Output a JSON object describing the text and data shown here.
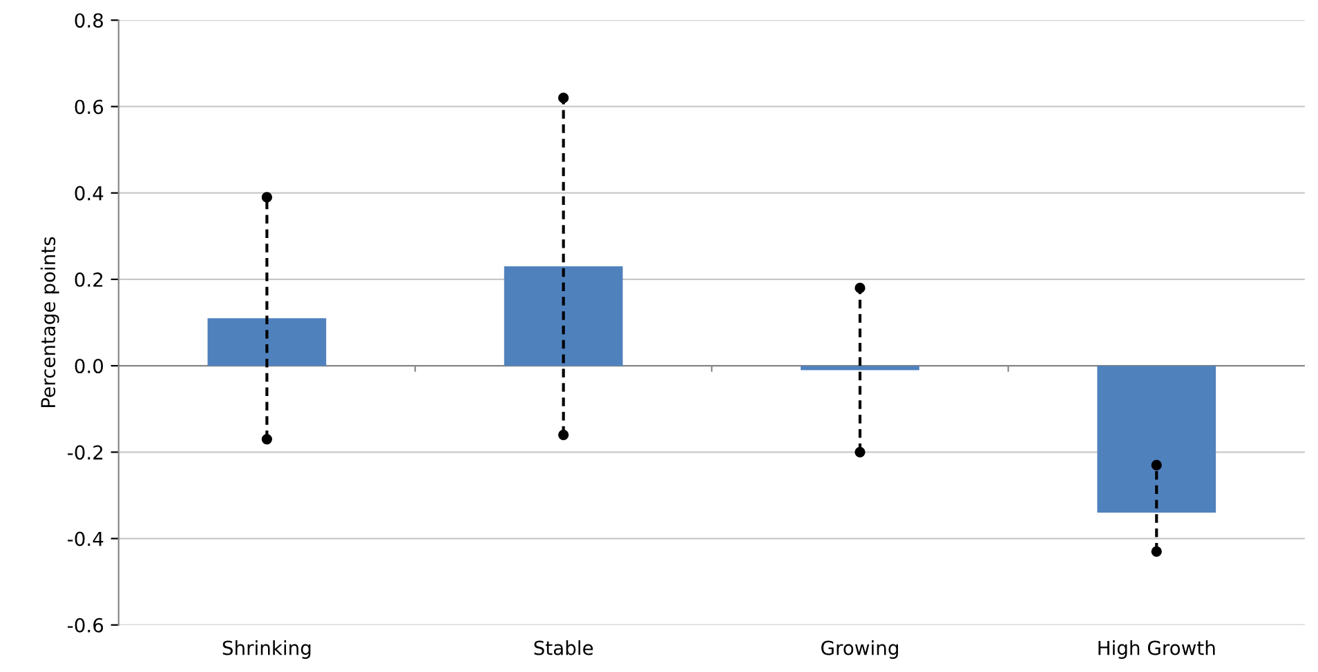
{
  "chart_data": {
    "type": "bar",
    "ylabel": "Percentage points",
    "categories": [
      "Shrinking",
      "Stable",
      "Growing",
      "High Growth"
    ],
    "values": [
      0.11,
      0.23,
      -0.01,
      -0.34
    ],
    "errors": [
      [
        -0.17,
        0.39
      ],
      [
        -0.16,
        0.62
      ],
      [
        -0.2,
        0.18
      ],
      [
        -0.43,
        -0.23
      ]
    ],
    "color": "#4f81bd",
    "ylim": [
      -0.6,
      0.8
    ],
    "yticks": [
      -0.6,
      -0.4,
      -0.2,
      {
        "value": 0,
        "label": "0.0"
      },
      0.2,
      0.4,
      0.6,
      0.8
    ],
    "grid": "y",
    "line_style": "dashed",
    "marker": "circle"
  }
}
